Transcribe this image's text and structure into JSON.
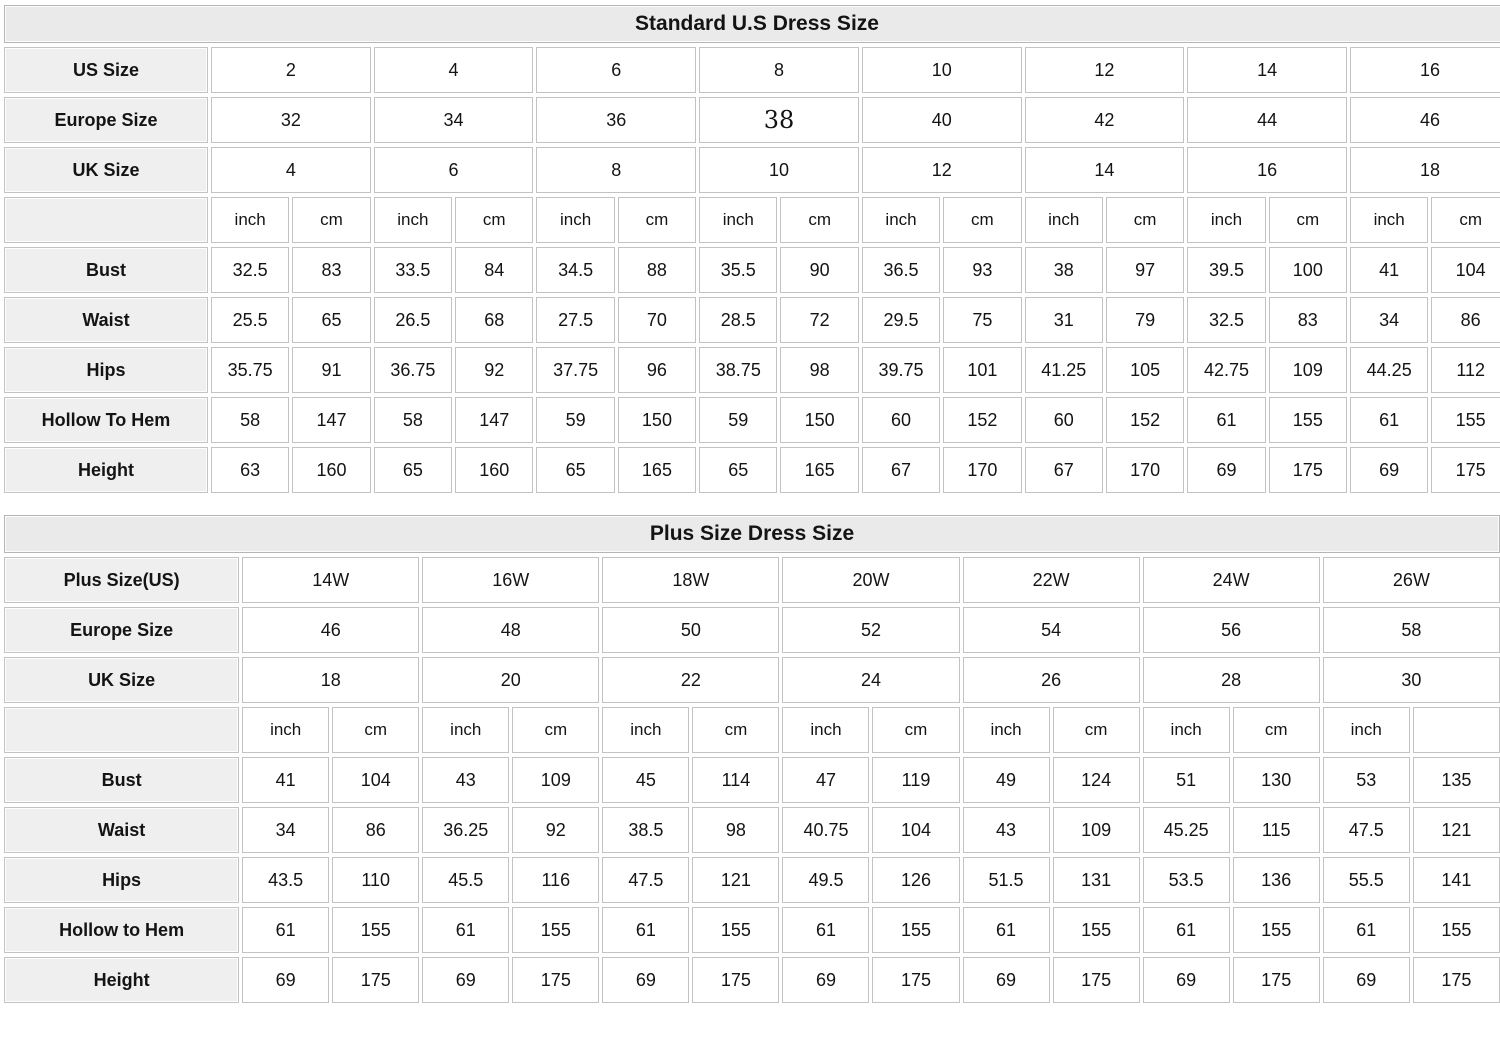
{
  "colors": {
    "title_bg": "#eaeaea",
    "label_bg": "#efefef",
    "cell_bg": "#ffffff",
    "border": "#c3c3c3",
    "text": "#141414"
  },
  "chart_data": [
    {
      "type": "table",
      "title": "Standard U.S Dress Size",
      "size_rows": [
        {
          "label": "US Size",
          "values": [
            "2",
            "4",
            "6",
            "8",
            "10",
            "12",
            "14",
            "16"
          ]
        },
        {
          "label": "Europe Size",
          "values": [
            "32",
            "34",
            "36",
            "38",
            "40",
            "42",
            "44",
            "46"
          ],
          "alt_font_index": 3
        },
        {
          "label": "UK Size",
          "values": [
            "4",
            "6",
            "8",
            "10",
            "12",
            "14",
            "16",
            "18"
          ]
        }
      ],
      "units_row": [
        "inch",
        "cm",
        "inch",
        "cm",
        "inch",
        "cm",
        "inch",
        "cm",
        "inch",
        "cm",
        "inch",
        "cm",
        "inch",
        "cm",
        "inch",
        "cm"
      ],
      "measurement_rows": [
        {
          "label": "Bust",
          "values": [
            "32.5",
            "83",
            "33.5",
            "84",
            "34.5",
            "88",
            "35.5",
            "90",
            "36.5",
            "93",
            "38",
            "97",
            "39.5",
            "100",
            "41",
            "104"
          ]
        },
        {
          "label": "Waist",
          "values": [
            "25.5",
            "65",
            "26.5",
            "68",
            "27.5",
            "70",
            "28.5",
            "72",
            "29.5",
            "75",
            "31",
            "79",
            "32.5",
            "83",
            "34",
            "86"
          ]
        },
        {
          "label": "Hips",
          "values": [
            "35.75",
            "91",
            "36.75",
            "92",
            "37.75",
            "96",
            "38.75",
            "98",
            "39.75",
            "101",
            "41.25",
            "105",
            "42.75",
            "109",
            "44.25",
            "112"
          ]
        },
        {
          "label": "Hollow To Hem",
          "values": [
            "58",
            "147",
            "58",
            "147",
            "59",
            "150",
            "59",
            "150",
            "60",
            "152",
            "60",
            "152",
            "61",
            "155",
            "61",
            "155"
          ]
        },
        {
          "label": "Height",
          "values": [
            "63",
            "160",
            "65",
            "160",
            "65",
            "165",
            "65",
            "165",
            "67",
            "170",
            "67",
            "170",
            "69",
            "175",
            "69",
            "175"
          ]
        }
      ]
    },
    {
      "type": "table",
      "title": "Plus Size Dress Size",
      "size_rows": [
        {
          "label": "Plus Size(US)",
          "values": [
            "14W",
            "16W",
            "18W",
            "20W",
            "22W",
            "24W",
            "26W"
          ]
        },
        {
          "label": "Europe Size",
          "values": [
            "46",
            "48",
            "50",
            "52",
            "54",
            "56",
            "58"
          ]
        },
        {
          "label": "UK Size",
          "values": [
            "18",
            "20",
            "22",
            "24",
            "26",
            "28",
            "30"
          ]
        }
      ],
      "units_row": [
        "inch",
        "cm",
        "inch",
        "cm",
        "inch",
        "cm",
        "inch",
        "cm",
        "inch",
        "cm",
        "inch",
        "cm",
        "inch",
        ""
      ],
      "measurement_rows": [
        {
          "label": "Bust",
          "values": [
            "41",
            "104",
            "43",
            "109",
            "45",
            "114",
            "47",
            "119",
            "49",
            "124",
            "51",
            "130",
            "53",
            "135"
          ]
        },
        {
          "label": "Waist",
          "values": [
            "34",
            "86",
            "36.25",
            "92",
            "38.5",
            "98",
            "40.75",
            "104",
            "43",
            "109",
            "45.25",
            "115",
            "47.5",
            "121"
          ]
        },
        {
          "label": "Hips",
          "values": [
            "43.5",
            "110",
            "45.5",
            "116",
            "47.5",
            "121",
            "49.5",
            "126",
            "51.5",
            "131",
            "53.5",
            "136",
            "55.5",
            "141"
          ]
        },
        {
          "label": "Hollow to Hem",
          "values": [
            "61",
            "155",
            "61",
            "155",
            "61",
            "155",
            "61",
            "155",
            "61",
            "155",
            "61",
            "155",
            "61",
            "155"
          ]
        },
        {
          "label": "Height",
          "values": [
            "69",
            "175",
            "69",
            "175",
            "69",
            "175",
            "69",
            "175",
            "69",
            "175",
            "69",
            "175",
            "69",
            "175"
          ]
        }
      ]
    }
  ]
}
